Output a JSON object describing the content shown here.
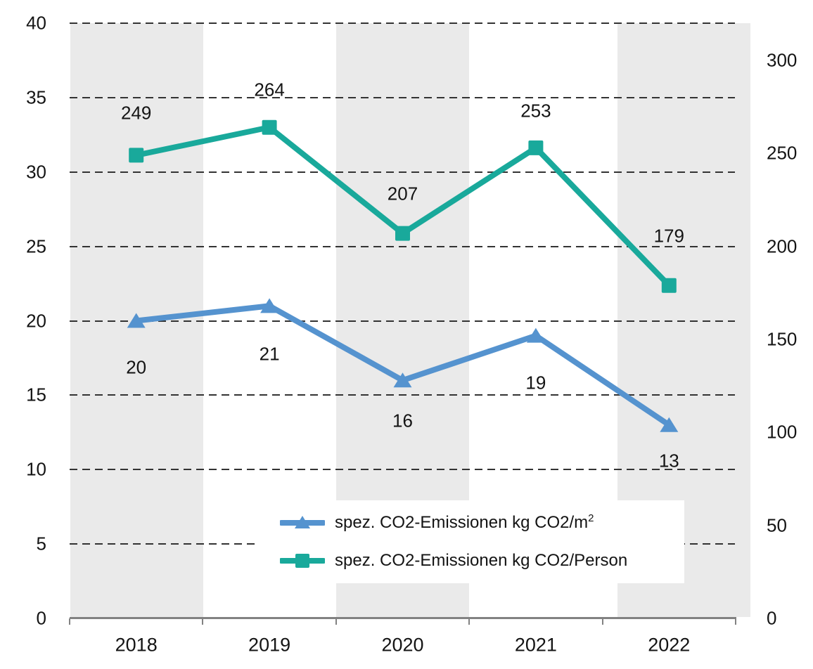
{
  "chart_data": {
    "type": "line",
    "title": "",
    "categories": [
      "2018",
      "2019",
      "2020",
      "2021",
      "2022"
    ],
    "series": [
      {
        "name": "spez. CO2-Emissionen kg CO2/m²",
        "axis": "left",
        "color": "#5593CF",
        "marker": "triangle",
        "values": [
          20,
          21,
          16,
          19,
          13
        ]
      },
      {
        "name": "spez. CO2-Emissionen kg CO2/Person",
        "axis": "right",
        "color": "#19A99B",
        "marker": "square",
        "values": [
          249,
          264,
          207,
          253,
          179
        ]
      }
    ],
    "left_axis": {
      "min": 0,
      "max": 40,
      "ticks": [
        0,
        5,
        10,
        15,
        20,
        25,
        30,
        35,
        40
      ]
    },
    "right_axis": {
      "min": 0,
      "max": 320,
      "ticks": [
        0,
        50,
        100,
        150,
        200,
        250,
        300
      ]
    },
    "grid": "horizontal-dashed",
    "legend_position": "bottom-center",
    "shaded_columns": [
      "2018",
      "2020",
      "2022"
    ],
    "colors": {
      "band": "#EAEAEA",
      "axis_line": "#828282",
      "gridline": "#333333",
      "text": "#141414",
      "background": "#FFFFFF"
    }
  }
}
